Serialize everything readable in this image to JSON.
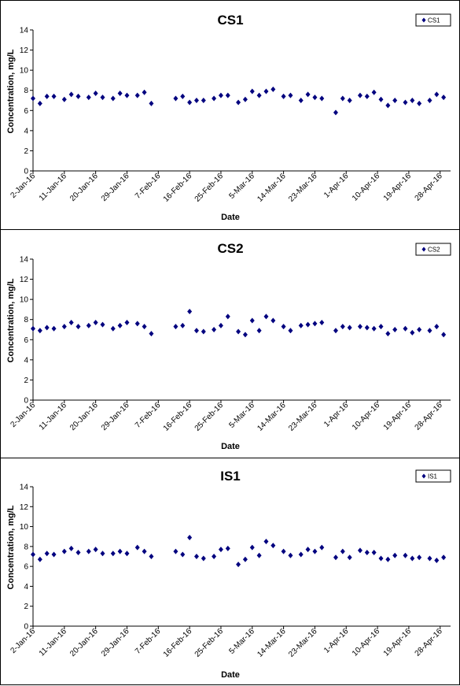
{
  "colors": {
    "marker": "#00007f",
    "axis": "#000000",
    "background": "#ffffff"
  },
  "chart_data": [
    {
      "type": "scatter",
      "title": "CS1",
      "xlabel": "Date",
      "ylabel": "Concentration, mg/L",
      "ylim": [
        0,
        14
      ],
      "yticks": [
        0,
        2,
        4,
        6,
        8,
        10,
        12,
        14
      ],
      "xlim": [
        "2016-01-02",
        "2016-05-01"
      ],
      "xtick_labels": [
        "2-Jan-16",
        "11-Jan-16",
        "20-Jan-16",
        "29-Jan-16",
        "7-Feb-16",
        "16-Feb-16",
        "25-Feb-16",
        "5-Mar-16",
        "14-Mar-16",
        "23-Mar-16",
        "1-Apr-16",
        "10-Apr-16",
        "19-Apr-16",
        "28-Apr-16"
      ],
      "legend": "top-right",
      "grid": false,
      "series": [
        {
          "name": "CS1",
          "x": [
            "2016-01-02",
            "2016-01-04",
            "2016-01-06",
            "2016-01-08",
            "2016-01-11",
            "2016-01-13",
            "2016-01-15",
            "2016-01-18",
            "2016-01-20",
            "2016-01-22",
            "2016-01-25",
            "2016-01-27",
            "2016-01-29",
            "2016-02-01",
            "2016-02-03",
            "2016-02-05",
            "2016-02-12",
            "2016-02-14",
            "2016-02-16",
            "2016-02-18",
            "2016-02-20",
            "2016-02-23",
            "2016-02-25",
            "2016-02-27",
            "2016-03-01",
            "2016-03-03",
            "2016-03-05",
            "2016-03-07",
            "2016-03-09",
            "2016-03-11",
            "2016-03-14",
            "2016-03-16",
            "2016-03-19",
            "2016-03-21",
            "2016-03-23",
            "2016-03-25",
            "2016-03-29",
            "2016-03-31",
            "2016-04-02",
            "2016-04-05",
            "2016-04-07",
            "2016-04-09",
            "2016-04-11",
            "2016-04-13",
            "2016-04-15",
            "2016-04-18",
            "2016-04-20",
            "2016-04-22",
            "2016-04-25",
            "2016-04-27",
            "2016-04-29"
          ],
          "y": [
            7.2,
            6.7,
            7.4,
            7.4,
            7.1,
            7.6,
            7.4,
            7.3,
            7.7,
            7.3,
            7.2,
            7.7,
            7.5,
            7.5,
            7.8,
            6.7,
            7.2,
            7.4,
            6.8,
            7.0,
            7.0,
            7.2,
            7.5,
            7.5,
            6.8,
            7.1,
            7.9,
            7.5,
            7.9,
            8.1,
            7.4,
            7.5,
            7.0,
            7.6,
            7.3,
            7.2,
            5.8,
            7.2,
            7.0,
            7.5,
            7.4,
            7.8,
            7.1,
            6.5,
            7.0,
            6.8,
            7.0,
            6.7,
            7.0,
            7.6,
            7.3
          ]
        }
      ]
    },
    {
      "type": "scatter",
      "title": "CS2",
      "xlabel": "Date",
      "ylabel": "Concentration, mg/L",
      "ylim": [
        0,
        14
      ],
      "yticks": [
        0,
        2,
        4,
        6,
        8,
        10,
        12,
        14
      ],
      "xlim": [
        "2016-01-02",
        "2016-05-01"
      ],
      "xtick_labels": [
        "2-Jan-16",
        "11-Jan-16",
        "20-Jan-16",
        "29-Jan-16",
        "7-Feb-16",
        "16-Feb-16",
        "25-Feb-16",
        "5-Mar-16",
        "14-Mar-16",
        "23-Mar-16",
        "1-Apr-16",
        "10-Apr-16",
        "19-Apr-16",
        "28-Apr-16"
      ],
      "legend": "top-right",
      "grid": false,
      "series": [
        {
          "name": "CS2",
          "x": [
            "2016-01-02",
            "2016-01-04",
            "2016-01-06",
            "2016-01-08",
            "2016-01-11",
            "2016-01-13",
            "2016-01-15",
            "2016-01-18",
            "2016-01-20",
            "2016-01-22",
            "2016-01-25",
            "2016-01-27",
            "2016-01-29",
            "2016-02-01",
            "2016-02-03",
            "2016-02-05",
            "2016-02-12",
            "2016-02-14",
            "2016-02-16",
            "2016-02-18",
            "2016-02-20",
            "2016-02-23",
            "2016-02-25",
            "2016-02-27",
            "2016-03-01",
            "2016-03-03",
            "2016-03-05",
            "2016-03-07",
            "2016-03-09",
            "2016-03-11",
            "2016-03-14",
            "2016-03-16",
            "2016-03-19",
            "2016-03-21",
            "2016-03-23",
            "2016-03-25",
            "2016-03-29",
            "2016-03-31",
            "2016-04-02",
            "2016-04-05",
            "2016-04-07",
            "2016-04-09",
            "2016-04-11",
            "2016-04-13",
            "2016-04-15",
            "2016-04-18",
            "2016-04-20",
            "2016-04-22",
            "2016-04-25",
            "2016-04-27",
            "2016-04-29"
          ],
          "y": [
            7.1,
            6.9,
            7.2,
            7.1,
            7.3,
            7.7,
            7.3,
            7.4,
            7.7,
            7.5,
            7.1,
            7.4,
            7.7,
            7.6,
            7.3,
            6.6,
            7.3,
            7.4,
            8.8,
            6.9,
            6.8,
            7.0,
            7.4,
            8.3,
            6.8,
            6.5,
            7.9,
            6.9,
            8.3,
            7.9,
            7.3,
            6.9,
            7.4,
            7.5,
            7.6,
            7.7,
            6.9,
            7.3,
            7.2,
            7.3,
            7.2,
            7.1,
            7.3,
            6.6,
            7.0,
            7.1,
            6.7,
            7.0,
            6.9,
            7.3,
            6.5
          ]
        }
      ]
    },
    {
      "type": "scatter",
      "title": "IS1",
      "xlabel": "Date",
      "ylabel": "Concentration, mg/L",
      "ylim": [
        0,
        14
      ],
      "yticks": [
        0,
        2,
        4,
        6,
        8,
        10,
        12,
        14
      ],
      "xlim": [
        "2016-01-02",
        "2016-05-01"
      ],
      "xtick_labels": [
        "2-Jan-16",
        "11-Jan-16",
        "20-Jan-16",
        "29-Jan-16",
        "7-Feb-16",
        "16-Feb-16",
        "25-Feb-16",
        "5-Mar-16",
        "14-Mar-16",
        "23-Mar-16",
        "1-Apr-16",
        "10-Apr-16",
        "19-Apr-16",
        "28-Apr-16"
      ],
      "legend": "top-right",
      "grid": false,
      "series": [
        {
          "name": "IS1",
          "x": [
            "2016-01-02",
            "2016-01-04",
            "2016-01-06",
            "2016-01-08",
            "2016-01-11",
            "2016-01-13",
            "2016-01-15",
            "2016-01-18",
            "2016-01-20",
            "2016-01-22",
            "2016-01-25",
            "2016-01-27",
            "2016-01-29",
            "2016-02-01",
            "2016-02-03",
            "2016-02-05",
            "2016-02-12",
            "2016-02-14",
            "2016-02-16",
            "2016-02-18",
            "2016-02-20",
            "2016-02-23",
            "2016-02-25",
            "2016-02-27",
            "2016-03-01",
            "2016-03-03",
            "2016-03-05",
            "2016-03-07",
            "2016-03-09",
            "2016-03-11",
            "2016-03-14",
            "2016-03-16",
            "2016-03-19",
            "2016-03-21",
            "2016-03-23",
            "2016-03-25",
            "2016-03-29",
            "2016-03-31",
            "2016-04-02",
            "2016-04-05",
            "2016-04-07",
            "2016-04-09",
            "2016-04-11",
            "2016-04-13",
            "2016-04-15",
            "2016-04-18",
            "2016-04-20",
            "2016-04-22",
            "2016-04-25",
            "2016-04-27",
            "2016-04-29"
          ],
          "y": [
            7.2,
            6.7,
            7.3,
            7.2,
            7.5,
            7.8,
            7.4,
            7.5,
            7.7,
            7.3,
            7.3,
            7.5,
            7.3,
            7.9,
            7.5,
            7.0,
            7.5,
            7.2,
            8.9,
            7.0,
            6.8,
            7.0,
            7.7,
            7.8,
            6.2,
            6.7,
            7.9,
            7.1,
            8.5,
            8.1,
            7.5,
            7.1,
            7.2,
            7.7,
            7.5,
            7.9,
            6.9,
            7.5,
            6.9,
            7.6,
            7.4,
            7.4,
            6.8,
            6.7,
            7.1,
            7.1,
            6.8,
            6.9,
            6.8,
            6.6,
            6.9
          ]
        }
      ]
    }
  ]
}
